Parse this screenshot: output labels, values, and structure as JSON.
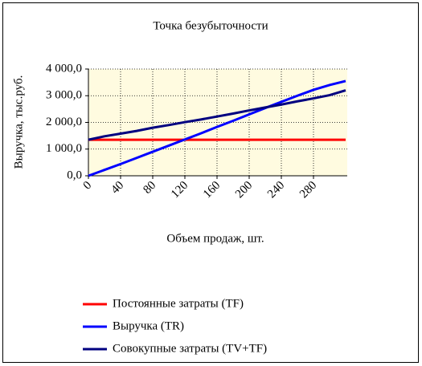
{
  "chart_data": {
    "type": "line",
    "title": "Точка безубыточности",
    "x_label": "Объем продаж, шт.",
    "y_label": "Выручка, тыс.руб.",
    "x": [
      0,
      20,
      40,
      60,
      80,
      100,
      120,
      140,
      160,
      180,
      200,
      220,
      240,
      260,
      280,
      300,
      320
    ],
    "series": [
      {
        "name": "Постоянные затраты (TF)",
        "color": "#ff0000",
        "values": [
          1350,
          1350,
          1350,
          1350,
          1350,
          1350,
          1350,
          1350,
          1350,
          1350,
          1350,
          1350,
          1350,
          1350,
          1350,
          1350,
          1350
        ]
      },
      {
        "name": "Выручка (TR)",
        "color": "#0000ff",
        "values": [
          0,
          220,
          440,
          670,
          900,
          1130,
          1360,
          1590,
          1830,
          2060,
          2300,
          2540,
          2770,
          3000,
          3220,
          3400,
          3550
        ]
      },
      {
        "name": "Совокупные затраты (TV+TF)",
        "color": "#000080",
        "values": [
          1350,
          1480,
          1580,
          1680,
          1800,
          1900,
          2010,
          2110,
          2220,
          2330,
          2450,
          2560,
          2670,
          2790,
          2900,
          3020,
          3200
        ]
      }
    ],
    "xlim": [
      0,
      322
    ],
    "xticks": [
      0,
      40,
      80,
      120,
      160,
      200,
      240,
      280
    ],
    "ylim": [
      0,
      4000
    ],
    "yticks": [
      {
        "value": 0,
        "label": "0,0"
      },
      {
        "value": 1000,
        "label": "1 000,0"
      },
      {
        "value": 2000,
        "label": "2 000,0"
      },
      {
        "value": 3000,
        "label": "3 000,0"
      },
      {
        "value": 4000,
        "label": "4 000,0"
      }
    ],
    "grid": true,
    "legend": "bottom"
  }
}
